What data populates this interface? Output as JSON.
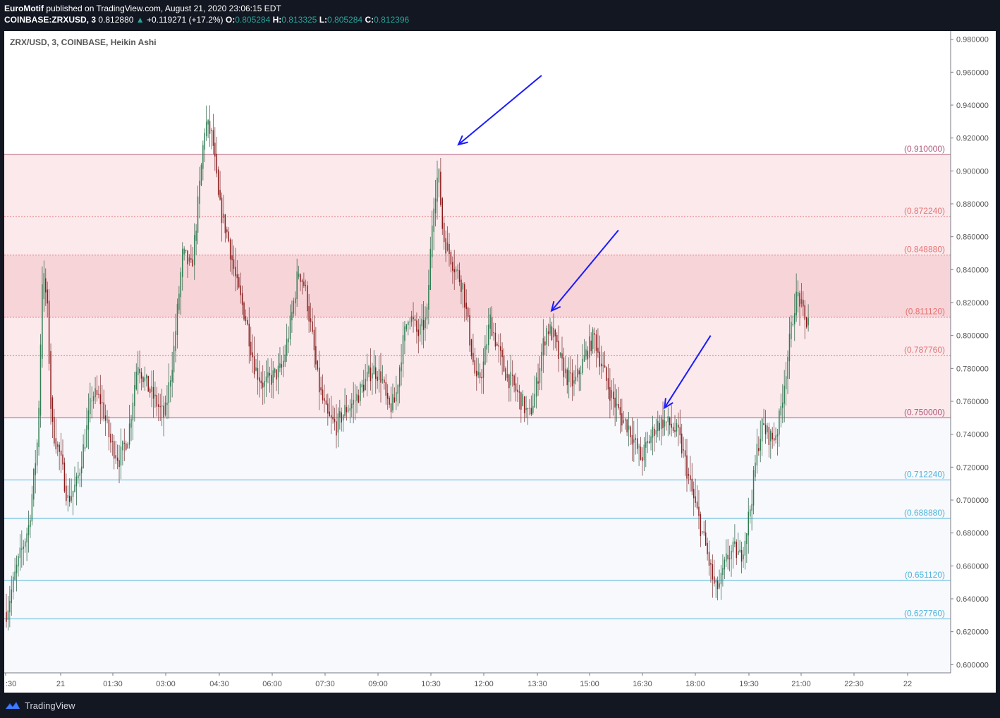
{
  "header": {
    "author": "EuroMotif",
    "published_text": "published on TradingView.com, August 21, 2020 23:06:15 EDT",
    "symbol": "COINBASE:ZRXUSD, 3",
    "last": "0.812880",
    "change_icon": "triangle-up-icon",
    "change": "+0.119271 (+17.2%)",
    "o_label": "O:",
    "o": "0.805284",
    "h_label": "H:",
    "h": "0.813325",
    "l_label": "L:",
    "l": "0.805284",
    "c_label": "C:",
    "c": "0.812396"
  },
  "footer": {
    "brand": "TradingView",
    "icon": "tradingview-logo-icon"
  },
  "chart_data": {
    "type": "candlestick",
    "title": "ZRX/USD, 3, COINBASE, Heikin Ashi",
    "colors": {
      "up": "#26a69a",
      "down": "#ef5350",
      "upBody": "#2e7d52",
      "downBody": "#8b1a1a"
    },
    "y_range": [
      0.595,
      0.985
    ],
    "y_ticks": [
      "0.600000",
      "0.620000",
      "0.640000",
      "0.660000",
      "0.680000",
      "0.700000",
      "0.720000",
      "0.740000",
      "0.760000",
      "0.780000",
      "0.800000",
      "0.820000",
      "0.840000",
      "0.860000",
      "0.880000",
      "0.900000",
      "0.920000",
      "0.940000",
      "0.960000",
      "0.980000"
    ],
    "x_ticks": [
      ":30",
      "21",
      "01:30",
      "03:00",
      "04:30",
      "06:00",
      "07:30",
      "09:00",
      "10:30",
      "12:00",
      "13:30",
      "15:00",
      "16:30",
      "18:00",
      "19:30",
      "21:00",
      "22:30",
      "22"
    ],
    "levels": [
      {
        "value": 0.91,
        "label": "(0.910000)",
        "color": "#b05a7a",
        "style": "solid"
      },
      {
        "value": 0.87224,
        "label": "(0.872240)",
        "color": "#e57373",
        "style": "dotted"
      },
      {
        "value": 0.84888,
        "label": "(0.848880)",
        "color": "#e57373",
        "style": "dotted"
      },
      {
        "value": 0.81112,
        "label": "(0.811120)",
        "color": "#e57373",
        "style": "dotted"
      },
      {
        "value": 0.78776,
        "label": "(0.787760)",
        "color": "#e57373",
        "style": "dotted"
      },
      {
        "value": 0.75,
        "label": "(0.750000)",
        "color": "#b05a7a",
        "style": "solid"
      },
      {
        "value": 0.71224,
        "label": "(0.712240)",
        "color": "#4fb3d9",
        "style": "solid"
      },
      {
        "value": 0.68888,
        "label": "(0.688880)",
        "color": "#4fb3d9",
        "style": "solid"
      },
      {
        "value": 0.65112,
        "label": "(0.651120)",
        "color": "#4fb3d9",
        "style": "solid"
      },
      {
        "value": 0.62776,
        "label": "(0.627760)",
        "color": "#4fb3d9",
        "style": "solid"
      }
    ],
    "zones": [
      {
        "from": 0.75,
        "to": 0.91,
        "color": "#fbe9ec"
      },
      {
        "from": 0.81112,
        "to": 0.84888,
        "color": "#f7d4d8"
      },
      {
        "from": 0.595,
        "to": 0.75,
        "color": "#f7f9fd"
      }
    ],
    "price_path": [
      [
        0.0,
        0.632
      ],
      [
        0.012,
        0.66
      ],
      [
        0.025,
        0.685
      ],
      [
        0.035,
        0.74
      ],
      [
        0.04,
        0.84
      ],
      [
        0.045,
        0.82
      ],
      [
        0.05,
        0.745
      ],
      [
        0.058,
        0.73
      ],
      [
        0.068,
        0.7
      ],
      [
        0.078,
        0.71
      ],
      [
        0.088,
        0.74
      ],
      [
        0.095,
        0.765
      ],
      [
        0.105,
        0.76
      ],
      [
        0.115,
        0.735
      ],
      [
        0.125,
        0.725
      ],
      [
        0.135,
        0.74
      ],
      [
        0.145,
        0.785
      ],
      [
        0.155,
        0.77
      ],
      [
        0.165,
        0.76
      ],
      [
        0.175,
        0.75
      ],
      [
        0.185,
        0.79
      ],
      [
        0.195,
        0.85
      ],
      [
        0.205,
        0.84
      ],
      [
        0.212,
        0.88
      ],
      [
        0.22,
        0.93
      ],
      [
        0.228,
        0.92
      ],
      [
        0.235,
        0.88
      ],
      [
        0.245,
        0.86
      ],
      [
        0.255,
        0.83
      ],
      [
        0.265,
        0.81
      ],
      [
        0.275,
        0.78
      ],
      [
        0.285,
        0.77
      ],
      [
        0.295,
        0.775
      ],
      [
        0.305,
        0.78
      ],
      [
        0.315,
        0.81
      ],
      [
        0.323,
        0.84
      ],
      [
        0.33,
        0.83
      ],
      [
        0.338,
        0.8
      ],
      [
        0.345,
        0.77
      ],
      [
        0.355,
        0.75
      ],
      [
        0.365,
        0.745
      ],
      [
        0.375,
        0.755
      ],
      [
        0.385,
        0.76
      ],
      [
        0.395,
        0.77
      ],
      [
        0.405,
        0.78
      ],
      [
        0.415,
        0.775
      ],
      [
        0.422,
        0.755
      ],
      [
        0.43,
        0.76
      ],
      [
        0.437,
        0.79
      ],
      [
        0.445,
        0.815
      ],
      [
        0.455,
        0.8
      ],
      [
        0.465,
        0.81
      ],
      [
        0.472,
        0.88
      ],
      [
        0.478,
        0.9
      ],
      [
        0.483,
        0.86
      ],
      [
        0.49,
        0.85
      ],
      [
        0.497,
        0.84
      ],
      [
        0.505,
        0.83
      ],
      [
        0.512,
        0.8
      ],
      [
        0.52,
        0.77
      ],
      [
        0.527,
        0.78
      ],
      [
        0.535,
        0.81
      ],
      [
        0.542,
        0.795
      ],
      [
        0.55,
        0.78
      ],
      [
        0.56,
        0.77
      ],
      [
        0.57,
        0.76
      ],
      [
        0.578,
        0.75
      ],
      [
        0.585,
        0.765
      ],
      [
        0.592,
        0.79
      ],
      [
        0.598,
        0.805
      ],
      [
        0.605,
        0.8
      ],
      [
        0.612,
        0.785
      ],
      [
        0.62,
        0.775
      ],
      [
        0.628,
        0.77
      ],
      [
        0.635,
        0.78
      ],
      [
        0.642,
        0.79
      ],
      [
        0.65,
        0.8
      ],
      [
        0.657,
        0.785
      ],
      [
        0.665,
        0.77
      ],
      [
        0.672,
        0.76
      ],
      [
        0.68,
        0.75
      ],
      [
        0.688,
        0.745
      ],
      [
        0.695,
        0.735
      ],
      [
        0.702,
        0.725
      ],
      [
        0.71,
        0.735
      ],
      [
        0.718,
        0.745
      ],
      [
        0.726,
        0.748
      ],
      [
        0.735,
        0.745
      ],
      [
        0.743,
        0.74
      ],
      [
        0.75,
        0.725
      ],
      [
        0.758,
        0.705
      ],
      [
        0.765,
        0.69
      ],
      [
        0.772,
        0.675
      ],
      [
        0.778,
        0.66
      ],
      [
        0.784,
        0.645
      ],
      [
        0.79,
        0.65
      ],
      [
        0.797,
        0.665
      ],
      [
        0.805,
        0.67
      ],
      [
        0.812,
        0.665
      ],
      [
        0.818,
        0.68
      ],
      [
        0.824,
        0.7
      ],
      [
        0.83,
        0.73
      ],
      [
        0.836,
        0.745
      ],
      [
        0.842,
        0.74
      ],
      [
        0.848,
        0.737
      ],
      [
        0.854,
        0.745
      ],
      [
        0.86,
        0.77
      ],
      [
        0.866,
        0.795
      ],
      [
        0.872,
        0.82
      ],
      [
        0.876,
        0.825
      ],
      [
        0.88,
        0.815
      ],
      [
        0.884,
        0.806
      ],
      [
        0.887,
        0.812
      ]
    ],
    "arrows": [
      {
        "from": [
          0.592,
          0.958
        ],
        "to": [
          0.5,
          0.916
        ]
      },
      {
        "from": [
          0.677,
          0.864
        ],
        "to": [
          0.603,
          0.815
        ]
      },
      {
        "from": [
          0.779,
          0.8
        ],
        "to": [
          0.728,
          0.756
        ]
      }
    ]
  }
}
